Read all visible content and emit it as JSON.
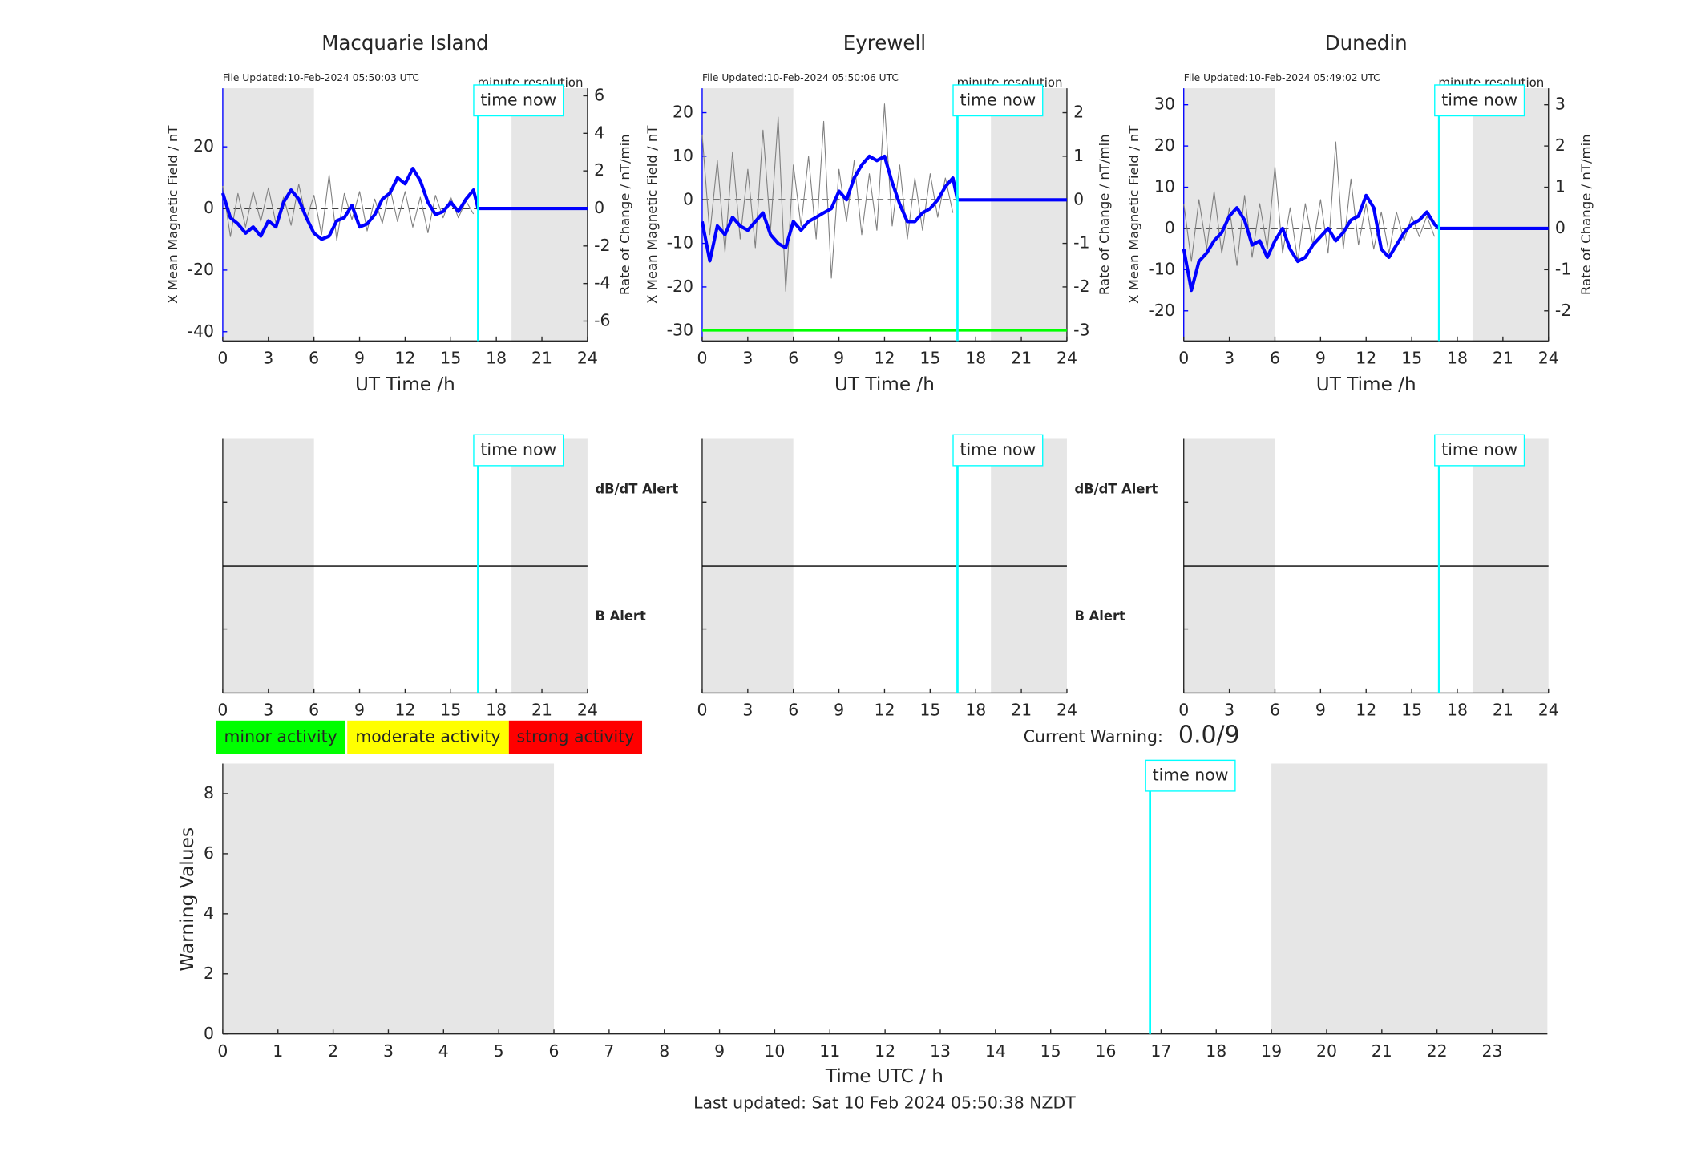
{
  "chart_data": [
    {
      "type": "line",
      "title": "Macquarie Island",
      "file_updated": "File Updated:10-Feb-2024 05:50:03 UTC",
      "resolution": "minute resolution",
      "xlabel": "UT Time /h",
      "ylabel": "X Mean Magnetic Field / nT",
      "y2label": "Rate of Change / nT/min",
      "xlim": [
        0,
        24
      ],
      "xticks": [
        0,
        3,
        6,
        9,
        12,
        15,
        18,
        21,
        24
      ],
      "ylim": [
        -43,
        39
      ],
      "yticks": [
        -40,
        -20,
        0,
        20
      ],
      "y2lim": [
        -7.06,
        6.4
      ],
      "y2ticks": [
        -6,
        -4,
        -2,
        0,
        2,
        4,
        6
      ],
      "shaded": [
        [
          0,
          6
        ],
        [
          19,
          24
        ]
      ],
      "time_now": 16.8,
      "time_now_label": "time now",
      "series": [
        {
          "color": "#808080",
          "axis": "y2",
          "x": [
            0,
            0.5,
            1,
            1.5,
            2,
            2.5,
            3,
            3.5,
            4,
            4.5,
            5,
            5.5,
            6,
            6.5,
            7,
            7.5,
            8,
            8.5,
            9,
            9.5,
            10,
            10.5,
            11,
            11.5,
            12,
            12.5,
            13,
            13.5,
            14,
            14.5,
            15,
            15.5,
            16,
            16.5
          ],
          "values": [
            1.2,
            -1.5,
            0.8,
            -1,
            0.9,
            -0.7,
            1.1,
            -0.8,
            0.6,
            -0.9,
            1.3,
            -0.6,
            0.7,
            -1.4,
            1.8,
            -1.7,
            0.8,
            -0.6,
            0.9,
            -1.2,
            0.5,
            -0.8,
            1.1,
            -0.7,
            0.9,
            -1,
            0.6,
            -1.3,
            0.7,
            -0.5,
            0.6,
            -0.5,
            0.4,
            -0.3
          ]
        },
        {
          "color": "#0000ff",
          "x": [
            0,
            0.5,
            1,
            1.5,
            2,
            2.5,
            3,
            3.5,
            4,
            4.5,
            5,
            5.5,
            6,
            6.5,
            7,
            7.5,
            8,
            8.5,
            9,
            9.5,
            10,
            10.5,
            11,
            11.5,
            12,
            12.5,
            13,
            13.5,
            14,
            14.5,
            15,
            15.5,
            16,
            16.5,
            16.8,
            24
          ],
          "values": [
            5,
            -3,
            -5,
            -8,
            -6,
            -9,
            -4,
            -6,
            2,
            6,
            3,
            -3,
            -8,
            -10,
            -9,
            -4,
            -3,
            1,
            -6,
            -5,
            -2,
            3,
            5,
            10,
            8,
            13,
            9,
            2,
            -2,
            -1,
            2,
            -1,
            3,
            6,
            0,
            0
          ]
        }
      ]
    },
    {
      "type": "line",
      "title": "Eyrewell",
      "file_updated": "File Updated:10-Feb-2024 05:50:06 UTC",
      "resolution": "minute resolution",
      "xlabel": "UT Time /h",
      "ylabel": "X Mean Magnetic Field / nT",
      "y2label": "Rate of Change / nT/min",
      "xlim": [
        0,
        24
      ],
      "xticks": [
        0,
        3,
        6,
        9,
        12,
        15,
        18,
        21,
        24
      ],
      "ylim": [
        -32.4,
        25.6
      ],
      "yticks": [
        -30,
        -20,
        -10,
        0,
        10,
        20
      ],
      "y2lim": [
        -3.24,
        2.56
      ],
      "y2ticks": [
        -3,
        -2,
        -1,
        0,
        1,
        2
      ],
      "shaded": [
        [
          0,
          6
        ],
        [
          19,
          24
        ]
      ],
      "time_now": 16.8,
      "time_now_label": "time now",
      "threshold": {
        "value": -30,
        "color": "#00ff00"
      },
      "series": [
        {
          "color": "#808080",
          "axis": "y2",
          "x": [
            0,
            0.5,
            1,
            1.5,
            2,
            2.5,
            3,
            3.5,
            4,
            4.5,
            5,
            5.5,
            6,
            6.5,
            7,
            7.5,
            8,
            8.5,
            9,
            9.5,
            10,
            10.5,
            11,
            11.5,
            12,
            12.5,
            13,
            13.5,
            14,
            14.5,
            15,
            15.5,
            16,
            16.5
          ],
          "values": [
            1.5,
            -0.8,
            0.9,
            -1.2,
            1.1,
            -0.9,
            0.7,
            -1.1,
            1.6,
            -0.7,
            1.9,
            -2.1,
            0.8,
            -0.6,
            1,
            -0.9,
            1.8,
            -1.8,
            0.7,
            -0.5,
            0.9,
            -0.8,
            0.6,
            -0.7,
            2.2,
            -0.6,
            0.8,
            -0.9,
            0.5,
            -0.7,
            0.6,
            -0.4,
            0.5,
            -0.3
          ]
        },
        {
          "color": "#0000ff",
          "x": [
            0,
            0.5,
            1,
            1.5,
            2,
            2.5,
            3,
            3.5,
            4,
            4.5,
            5,
            5.5,
            6,
            6.5,
            7,
            7.5,
            8,
            8.5,
            9,
            9.5,
            10,
            10.5,
            11,
            11.5,
            12,
            12.5,
            13,
            13.5,
            14,
            14.5,
            15,
            15.5,
            16,
            16.5,
            16.8,
            24
          ],
          "values": [
            -5,
            -14,
            -6,
            -8,
            -4,
            -6,
            -7,
            -5,
            -3,
            -8,
            -10,
            -11,
            -5,
            -7,
            -5,
            -4,
            -3,
            -2,
            2,
            0,
            5,
            8,
            10,
            9,
            10,
            4,
            -1,
            -5,
            -5,
            -3,
            -2,
            0,
            3,
            5,
            0,
            0
          ]
        }
      ]
    },
    {
      "type": "line",
      "title": "Dunedin",
      "file_updated": "File Updated:10-Feb-2024 05:49:02 UTC",
      "resolution": "minute resolution",
      "xlabel": "UT Time /h",
      "ylabel": "X Mean Magnetic Field / nT",
      "y2label": "Rate of Change / nT/min",
      "xlim": [
        0,
        24
      ],
      "xticks": [
        0,
        3,
        6,
        9,
        12,
        15,
        18,
        21,
        24
      ],
      "ylim": [
        -27.3,
        34
      ],
      "yticks": [
        -20,
        -10,
        0,
        10,
        20,
        30
      ],
      "y2lim": [
        -2.73,
        3.4
      ],
      "y2ticks": [
        -2,
        -1,
        0,
        1,
        2,
        3
      ],
      "shaded": [
        [
          0,
          6
        ],
        [
          19,
          24
        ]
      ],
      "time_now": 16.8,
      "time_now_label": "time now",
      "series": [
        {
          "color": "#808080",
          "axis": "y2",
          "x": [
            0,
            0.5,
            1,
            1.5,
            2,
            2.5,
            3,
            3.5,
            4,
            4.5,
            5,
            5.5,
            6,
            6.5,
            7,
            7.5,
            8,
            8.5,
            9,
            9.5,
            10,
            10.5,
            11,
            11.5,
            12,
            12.5,
            13,
            13.5,
            14,
            14.5,
            15,
            15.5,
            16,
            16.5
          ],
          "values": [
            0.6,
            -0.8,
            0.7,
            -0.5,
            0.9,
            -0.6,
            0.5,
            -0.9,
            0.8,
            -0.7,
            0.6,
            -0.5,
            1.5,
            -0.6,
            0.5,
            -0.8,
            0.6,
            -0.4,
            0.7,
            -0.6,
            2.1,
            -0.5,
            1.2,
            -0.4,
            0.6,
            -0.5,
            0.4,
            -0.6,
            0.4,
            -0.3,
            0.3,
            -0.2,
            0.3,
            -0.2
          ]
        },
        {
          "color": "#0000ff",
          "x": [
            0,
            0.5,
            1,
            1.5,
            2,
            2.5,
            3,
            3.5,
            4,
            4.5,
            5,
            5.5,
            6,
            6.5,
            7,
            7.5,
            8,
            8.5,
            9,
            9.5,
            10,
            10.5,
            11,
            11.5,
            12,
            12.5,
            13,
            13.5,
            14,
            14.5,
            15,
            15.5,
            16,
            16.5,
            16.8,
            24
          ],
          "values": [
            -5,
            -15,
            -8,
            -6,
            -3,
            -1,
            3,
            5,
            2,
            -4,
            -3,
            -7,
            -3,
            0,
            -5,
            -8,
            -7,
            -4,
            -2,
            0,
            -3,
            -1,
            2,
            3,
            8,
            5,
            -5,
            -7,
            -4,
            -1,
            1,
            2,
            4,
            1,
            0,
            0
          ]
        }
      ]
    },
    {
      "type": "alert",
      "xlim": [
        0,
        24
      ],
      "xticks": [
        0,
        3,
        6,
        9,
        12,
        15,
        18,
        21,
        24
      ],
      "shaded": [
        [
          0,
          6
        ],
        [
          19,
          24
        ]
      ],
      "time_now": 16.8,
      "time_now_label": "time now",
      "labels": [
        "dB/dT Alert",
        "B Alert"
      ]
    },
    {
      "type": "alert",
      "xlim": [
        0,
        24
      ],
      "xticks": [
        0,
        3,
        6,
        9,
        12,
        15,
        18,
        21,
        24
      ],
      "shaded": [
        [
          0,
          6
        ],
        [
          19,
          24
        ]
      ],
      "time_now": 16.8,
      "time_now_label": "time now",
      "labels": [
        "dB/dT Alert",
        "B Alert"
      ]
    },
    {
      "type": "alert",
      "xlim": [
        0,
        24
      ],
      "xticks": [
        0,
        3,
        6,
        9,
        12,
        15,
        18,
        21,
        24
      ],
      "shaded": [
        [
          0,
          6
        ],
        [
          19,
          24
        ]
      ],
      "time_now": 16.8,
      "time_now_label": "time now"
    },
    {
      "type": "warning",
      "xlabel": "Time UTC / h",
      "ylabel": "Warning Values",
      "xlim": [
        0,
        24
      ],
      "xticks": [
        0,
        1,
        2,
        3,
        4,
        5,
        6,
        7,
        8,
        9,
        10,
        11,
        12,
        13,
        14,
        15,
        16,
        17,
        18,
        19,
        20,
        21,
        22,
        23
      ],
      "ylim": [
        0,
        9
      ],
      "yticks": [
        0,
        2,
        4,
        6,
        8
      ],
      "shaded": [
        [
          0,
          6
        ],
        [
          19,
          24
        ]
      ],
      "time_now": 16.8,
      "time_now_label": "time now",
      "levels": [
        {
          "label": "minor activity",
          "color": "#00ff00"
        },
        {
          "label": "moderate activity",
          "color": "#ffff00"
        },
        {
          "label": "strong activity",
          "color": "#ff0000"
        }
      ],
      "current_warning_label": "Current Warning:",
      "current_warning": "0.0/9",
      "footer": "Last updated: Sat 10 Feb 2024 05:50:38 NZDT"
    }
  ]
}
